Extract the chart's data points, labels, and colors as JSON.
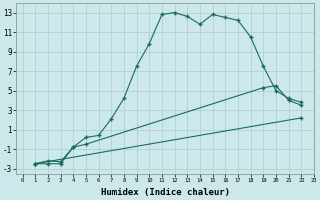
{
  "xlabel": "Humidex (Indice chaleur)",
  "xlim": [
    -0.5,
    23
  ],
  "ylim": [
    -3.5,
    14
  ],
  "xticks": [
    0,
    1,
    2,
    3,
    4,
    5,
    6,
    7,
    8,
    9,
    10,
    11,
    12,
    13,
    14,
    15,
    16,
    17,
    18,
    19,
    20,
    21,
    22,
    23
  ],
  "yticks": [
    -3,
    -1,
    1,
    3,
    5,
    7,
    9,
    11,
    13
  ],
  "bg_color": "#cce8ea",
  "grid_color": "#aacccc",
  "line_color": "#1a6b5e",
  "line1_x": [
    1,
    2,
    3,
    4,
    5,
    6,
    7,
    8,
    9,
    10,
    11,
    12,
    13,
    14,
    15,
    16,
    17,
    18,
    19,
    20,
    21,
    22
  ],
  "line1_y": [
    -2.5,
    -2.2,
    -2.3,
    -0.8,
    0.2,
    0.4,
    2.1,
    4.2,
    7.5,
    9.8,
    12.8,
    13.0,
    12.6,
    11.8,
    12.8,
    12.5,
    12.2,
    10.5,
    7.5,
    5.0,
    4.2,
    3.8
  ],
  "line2_x": [
    1,
    2,
    3,
    4,
    5,
    19,
    20,
    21,
    22
  ],
  "line2_y": [
    -2.5,
    -2.5,
    -2.5,
    -0.8,
    -0.5,
    5.3,
    5.5,
    4.0,
    3.5
  ],
  "line3_x": [
    1,
    22
  ],
  "line3_y": [
    -2.5,
    2.2
  ]
}
